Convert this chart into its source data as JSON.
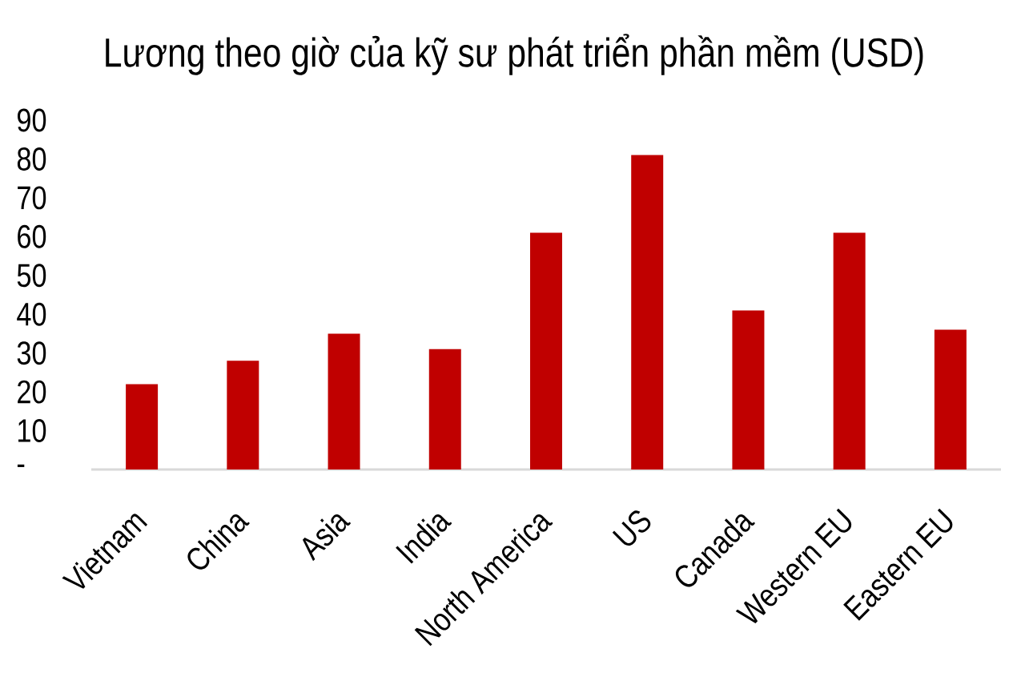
{
  "chart_data": {
    "type": "bar",
    "title": "Lương theo giờ của kỹ sư phát triển phần mềm (USD)",
    "categories": [
      "Vietnam",
      "China",
      "Asia",
      "India",
      "North America",
      "US",
      "Canada",
      "Western EU",
      "Eastern EU"
    ],
    "values": [
      22,
      28,
      35,
      31,
      61,
      81,
      41,
      61,
      36
    ],
    "color": "#c00000",
    "ylim": [
      0,
      90
    ],
    "yticks": [
      {
        "value": 0,
        "label": "-"
      },
      10,
      20,
      30,
      40,
      50,
      60,
      70,
      80,
      90
    ]
  }
}
